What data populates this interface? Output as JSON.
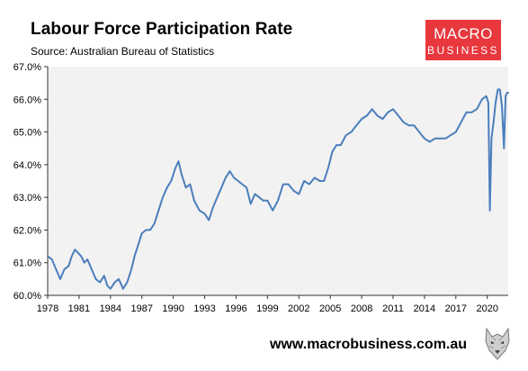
{
  "header": {
    "title": "Labour Force Participation Rate",
    "source": "Source: Australian Bureau of Statistics"
  },
  "logo": {
    "line1": "MACRO",
    "line2": "BUSINESS",
    "bg_color": "#e8373d",
    "text_color": "#ffffff"
  },
  "footer": {
    "url": "www.macrobusiness.com.au",
    "icon": "wolf-logo-icon"
  },
  "chart_data": {
    "type": "line",
    "title": "Labour Force Participation Rate",
    "xlabel": "",
    "ylabel": "",
    "ylim": [
      60.0,
      67.0
    ],
    "xlim": [
      1978.0,
      2022.0
    ],
    "y_ticks": [
      "60.0%",
      "61.0%",
      "62.0%",
      "63.0%",
      "64.0%",
      "65.0%",
      "66.0%",
      "67.0%"
    ],
    "x_ticks": [
      "1978",
      "1981",
      "1984",
      "1987",
      "1990",
      "1993",
      "1996",
      "1999",
      "2002",
      "2005",
      "2008",
      "2011",
      "2014",
      "2017",
      "2020"
    ],
    "grid": false,
    "legend": "none",
    "plot_bg": "#f2f2f2",
    "line_color": "#4a7ebb",
    "series": [
      {
        "x": [
          1978.0,
          1978.4,
          1978.8,
          1979.2,
          1979.6,
          1980.0,
          1980.3,
          1980.6,
          1980.9,
          1981.2,
          1981.5,
          1981.8,
          1982.2,
          1982.6,
          1983.0,
          1983.4,
          1983.7,
          1984.0,
          1984.4,
          1984.8,
          1985.2,
          1985.6,
          1986.0,
          1986.3,
          1986.6,
          1987.0,
          1987.4,
          1987.8,
          1988.2,
          1988.6,
          1989.0,
          1989.4,
          1989.8,
          1990.2,
          1990.5,
          1990.8,
          1991.2,
          1991.6,
          1992.0,
          1992.5,
          1993.0,
          1993.4,
          1993.8,
          1994.2,
          1994.6,
          1995.0,
          1995.4,
          1995.8,
          1996.2,
          1996.6,
          1997.0,
          1997.4,
          1997.8,
          1998.2,
          1998.6,
          1999.0,
          1999.5,
          2000.0,
          2000.5,
          2001.0,
          2001.5,
          2002.0,
          2002.5,
          2003.0,
          2003.5,
          2004.0,
          2004.4,
          2004.8,
          2005.2,
          2005.6,
          2006.0,
          2006.5,
          2007.0,
          2007.5,
          2008.0,
          2008.5,
          2009.0,
          2009.5,
          2010.0,
          2010.5,
          2011.0,
          2011.5,
          2012.0,
          2012.5,
          2013.0,
          2013.5,
          2014.0,
          2014.5,
          2015.0,
          2015.5,
          2016.0,
          2016.5,
          2017.0,
          2017.5,
          2018.0,
          2018.5,
          2019.0,
          2019.5,
          2019.9,
          2020.1,
          2020.25,
          2020.4,
          2020.6,
          2020.8,
          2021.0,
          2021.2,
          2021.4,
          2021.6,
          2021.75,
          2021.9,
          2022.0
        ],
        "y": [
          61.2,
          61.1,
          60.8,
          60.5,
          60.8,
          60.9,
          61.2,
          61.4,
          61.3,
          61.2,
          61.0,
          61.1,
          60.8,
          60.5,
          60.4,
          60.6,
          60.3,
          60.2,
          60.4,
          60.5,
          60.2,
          60.4,
          60.8,
          61.2,
          61.5,
          61.9,
          62.0,
          62.0,
          62.2,
          62.6,
          63.0,
          63.3,
          63.5,
          63.9,
          64.1,
          63.7,
          63.3,
          63.4,
          62.9,
          62.6,
          62.5,
          62.3,
          62.7,
          63.0,
          63.3,
          63.6,
          63.8,
          63.6,
          63.5,
          63.4,
          63.3,
          62.8,
          63.1,
          63.0,
          62.9,
          62.9,
          62.6,
          62.9,
          63.4,
          63.4,
          63.2,
          63.1,
          63.5,
          63.4,
          63.6,
          63.5,
          63.5,
          63.9,
          64.4,
          64.6,
          64.6,
          64.9,
          65.0,
          65.2,
          65.4,
          65.5,
          65.7,
          65.5,
          65.4,
          65.6,
          65.7,
          65.5,
          65.3,
          65.2,
          65.2,
          65.0,
          64.8,
          64.7,
          64.8,
          64.8,
          64.8,
          64.9,
          65.0,
          65.3,
          65.6,
          65.6,
          65.7,
          66.0,
          66.1,
          65.9,
          62.6,
          64.8,
          65.3,
          65.9,
          66.3,
          66.3,
          65.8,
          64.5,
          66.1,
          66.2,
          66.2
        ]
      }
    ]
  }
}
